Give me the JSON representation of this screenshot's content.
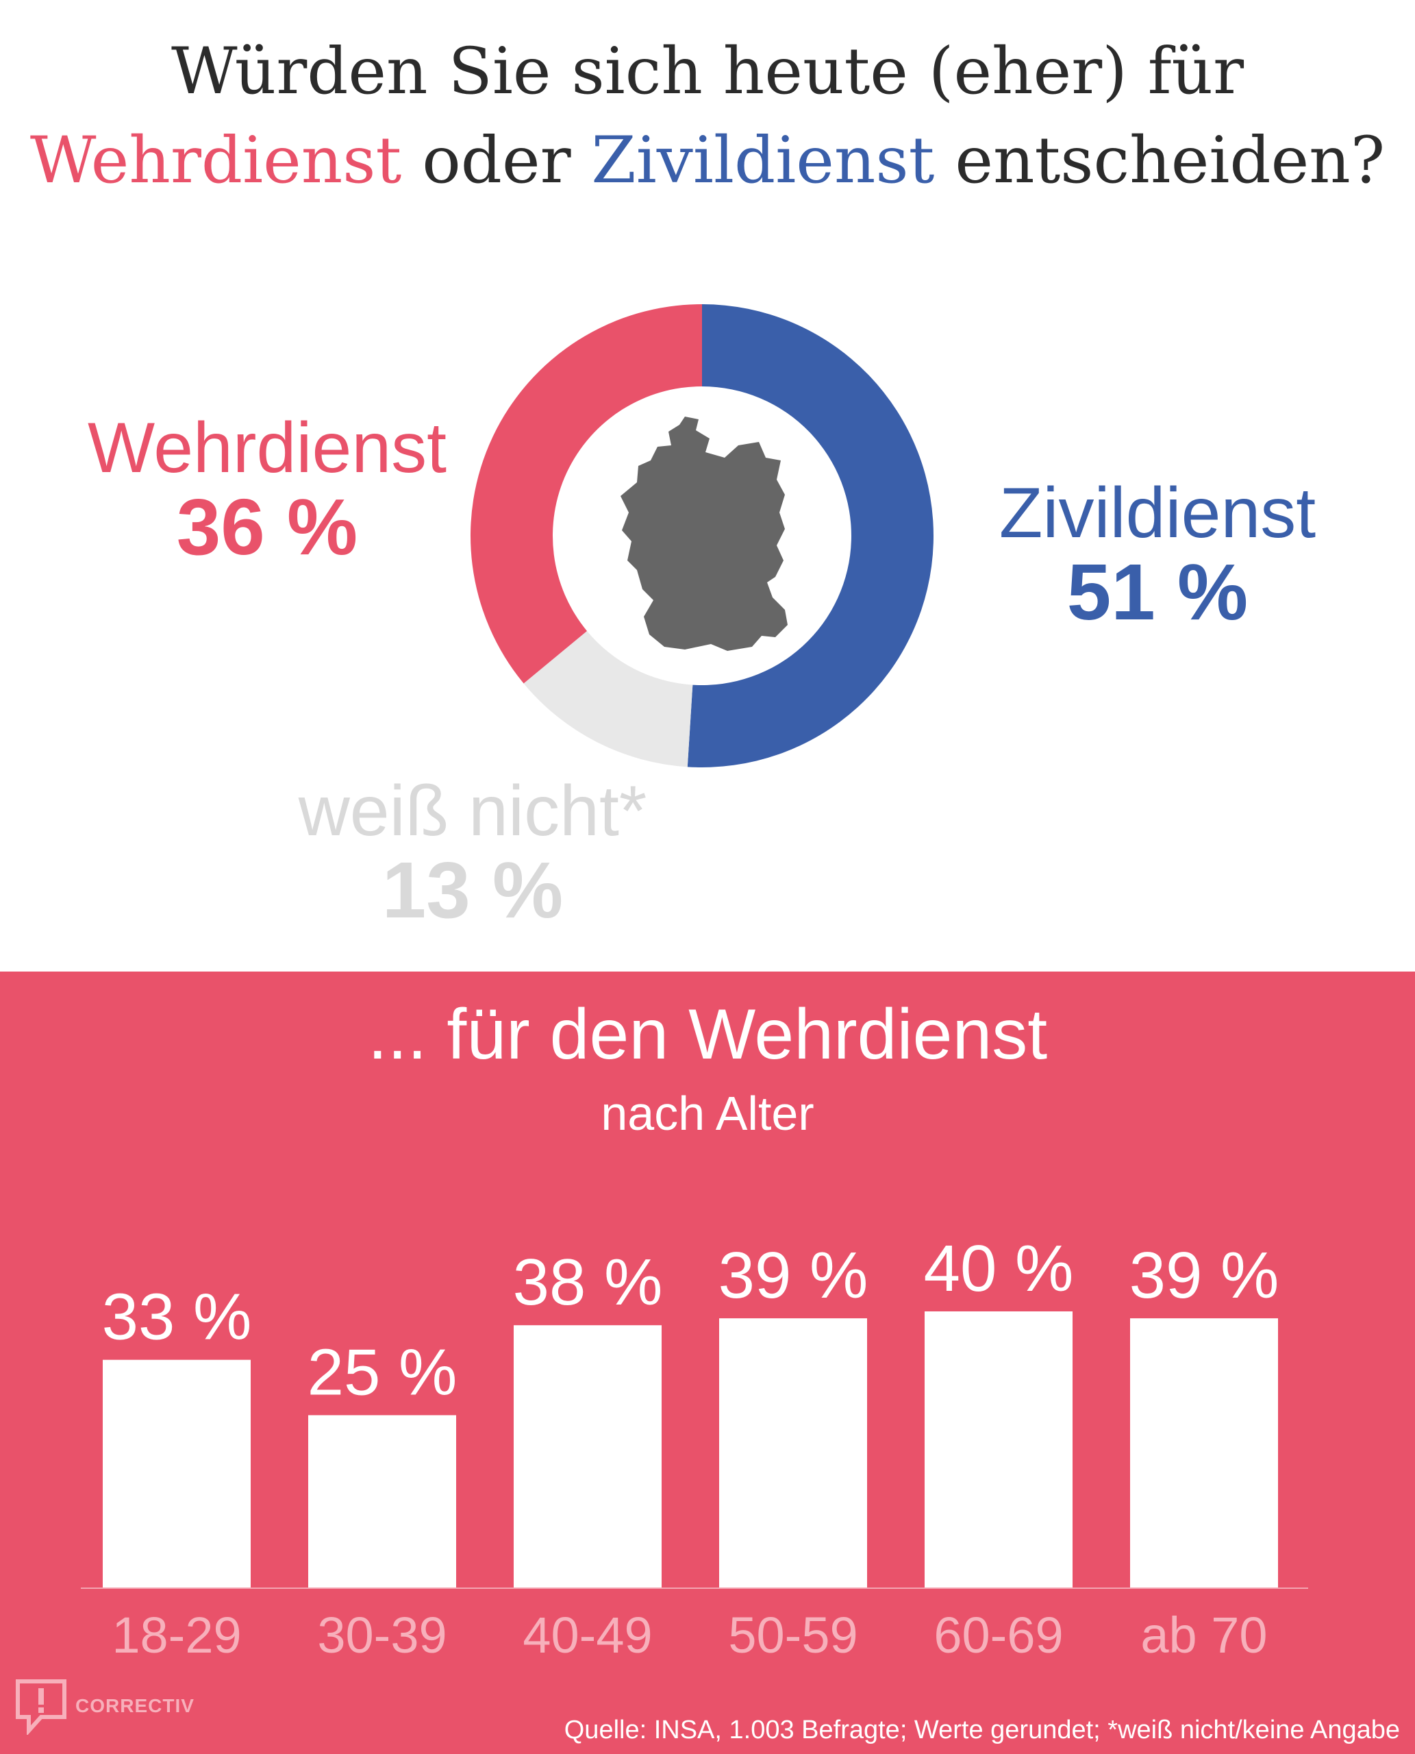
{
  "title": {
    "line1": "Würden Sie sich heute (eher) für",
    "wehr": "Wehrdienst",
    "oder": " oder ",
    "zivil": "Zivildienst",
    "end": " entscheiden?"
  },
  "colors": {
    "wehr": "#e9526a",
    "zivil": "#3a5faa",
    "weiss": "#e8e8e8",
    "map": "#666666",
    "background_lower": "#e9526a"
  },
  "chart_data": [
    {
      "type": "pie",
      "donut": true,
      "slices": [
        {
          "name": "Zivildienst",
          "value": 51,
          "label": "51 %"
        },
        {
          "name": "weiß nicht*",
          "value": 13,
          "label": "13 %"
        },
        {
          "name": "Wehrdienst",
          "value": 36,
          "label": "36 %"
        }
      ],
      "center_icon": "germany-map-icon"
    },
    {
      "type": "bar",
      "title": "... für den Wehrdienst",
      "subtitle": "nach Alter",
      "categories": [
        "18-29",
        "30-39",
        "40-49",
        "50-59",
        "60-69",
        "ab 70"
      ],
      "values": [
        33,
        25,
        38,
        39,
        40,
        39
      ],
      "labels": [
        "33 %",
        "25 %",
        "38 %",
        "39 %",
        "40 %",
        "39 %"
      ],
      "ylim": [
        0,
        40
      ]
    }
  ],
  "footer": {
    "logo": "CORRECTIV",
    "source": "Quelle: INSA, 1.003 Befragte; Werte gerundet; *weiß nicht/keine Angabe"
  }
}
